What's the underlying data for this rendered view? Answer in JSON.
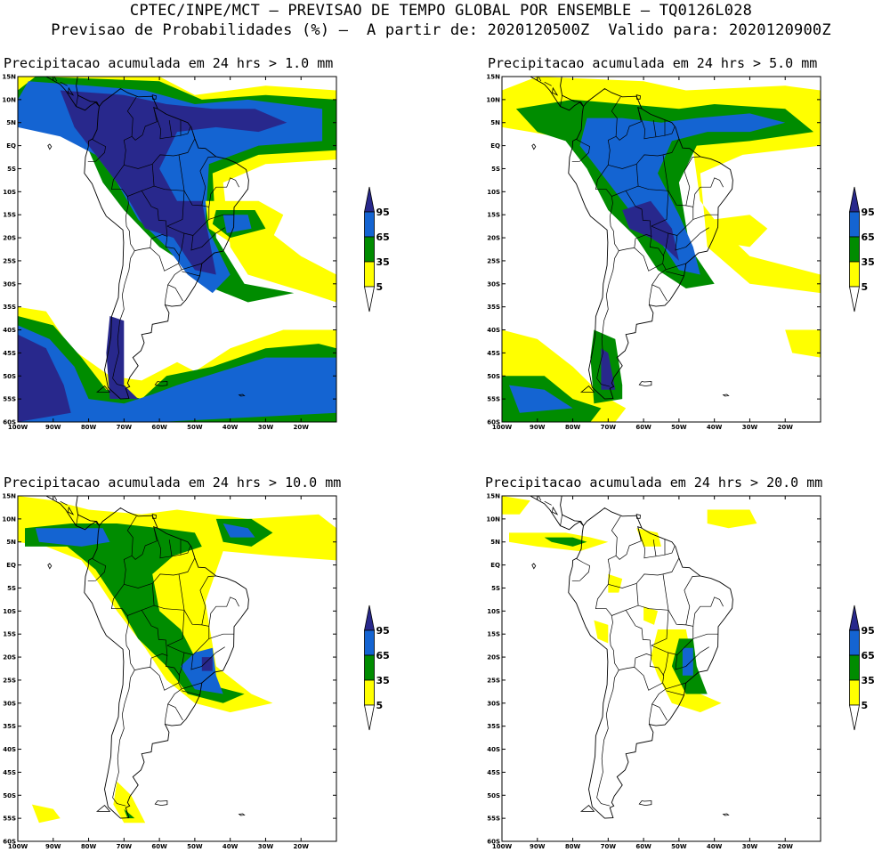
{
  "header": {
    "line1": "CPTEC/INPE/MCT – PREVISAO DE TEMPO GLOBAL POR ENSEMBLE – TQ0126L028",
    "line2": "Previsao de Probabilidades (%) –  A partir de: 2020120500Z  Valido para: 2020120900Z"
  },
  "colors": {
    "c5": "#ffff00",
    "c35": "#008c00",
    "c65": "#1464d2",
    "c95": "#28288c",
    "land": "#ffffff",
    "border": "#000000"
  },
  "colorbar_labels": [
    "95",
    "65",
    "35",
    "5"
  ],
  "lat_labels": [
    "15N",
    "10N",
    "5N",
    "EQ",
    "5S",
    "10S",
    "15S",
    "20S",
    "25S",
    "30S",
    "35S",
    "40S",
    "45S",
    "50S",
    "55S",
    "60S"
  ],
  "lon_labels": [
    "100W",
    "90W",
    "80W",
    "70W",
    "60W",
    "50W",
    "40W",
    "30W",
    "20W"
  ],
  "panels": [
    {
      "title": "Precipitacao acumulada em 24 hrs > 1.0 mm"
    },
    {
      "title": "Precipitacao acumulada em 24 hrs > 5.0 mm"
    },
    {
      "title": "Precipitacao acumulada em 24 hrs > 10.0 mm"
    },
    {
      "title": "Precipitacao acumulada em 24 hrs > 20.0 mm"
    }
  ]
}
